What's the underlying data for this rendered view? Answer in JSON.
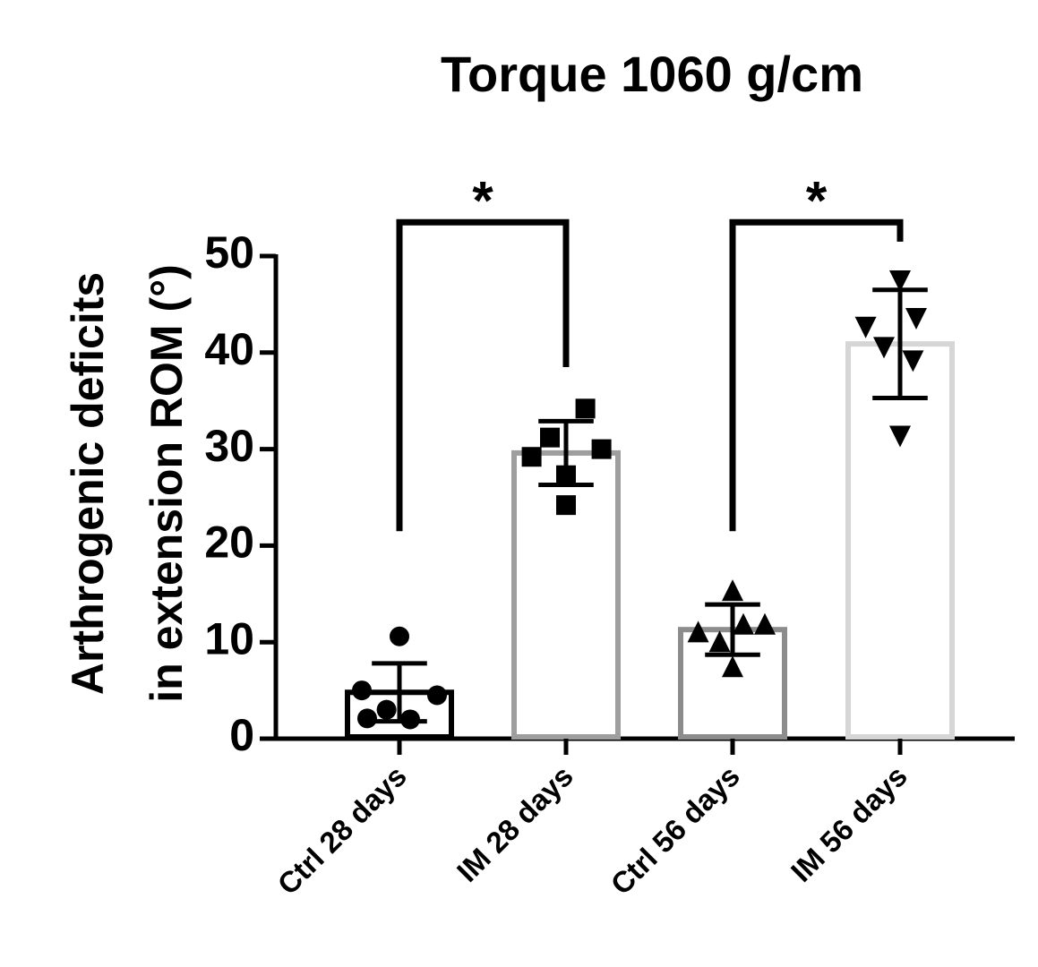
{
  "chart_data": {
    "type": "bar",
    "title": "Torque 1060 g/cm",
    "ylabel_line1": "Arthrogenic deficits",
    "ylabel_line2": "in extension  ROM (°)",
    "xlabel": "",
    "ylim": [
      0,
      50
    ],
    "yticks": [
      0,
      10,
      20,
      30,
      40,
      50
    ],
    "grid": false,
    "categories": [
      "Ctrl 28 days",
      "IM 28 days",
      "Ctrl 56 days",
      "IM 56 days"
    ],
    "values": [
      4.8,
      29.6,
      11.3,
      40.9
    ],
    "sd": [
      3.0,
      3.3,
      2.6,
      5.6
    ],
    "bar_colors": [
      "#000000",
      "#9e9e9e",
      "#8c8c8c",
      "#d6d6d6"
    ],
    "markers": [
      "circle",
      "square",
      "triangle-up",
      "triangle-down"
    ],
    "points": [
      [
        [
          -0.35,
          5.0
        ],
        [
          -0.12,
          3.0
        ],
        [
          0.0,
          10.6
        ],
        [
          0.1,
          2.0
        ],
        [
          -0.3,
          2.1
        ],
        [
          0.35,
          4.5
        ]
      ],
      [
        [
          -0.32,
          29.2
        ],
        [
          -0.15,
          31.2
        ],
        [
          0.0,
          27.3
        ],
        [
          0.18,
          34.2
        ],
        [
          0.33,
          30.0
        ],
        [
          0.0,
          24.2
        ]
      ],
      [
        [
          -0.32,
          11.0
        ],
        [
          -0.12,
          10.0
        ],
        [
          0.0,
          15.3
        ],
        [
          0.1,
          11.8
        ],
        [
          0.3,
          11.8
        ],
        [
          0.0,
          7.4
        ]
      ],
      [
        [
          -0.32,
          42.7
        ],
        [
          -0.15,
          40.6
        ],
        [
          0.0,
          47.5
        ],
        [
          0.15,
          43.6
        ],
        [
          0.12,
          39.2
        ],
        [
          0.0,
          31.4
        ]
      ]
    ],
    "significance": [
      {
        "from": 0,
        "to": 1,
        "label": "*",
        "left_y": 21.5,
        "right_y": 38.5,
        "top_y": 53.5
      },
      {
        "from": 2,
        "to": 3,
        "label": "*",
        "left_y": 21.5,
        "right_y": 51.5,
        "top_y": 53.5
      }
    ]
  }
}
